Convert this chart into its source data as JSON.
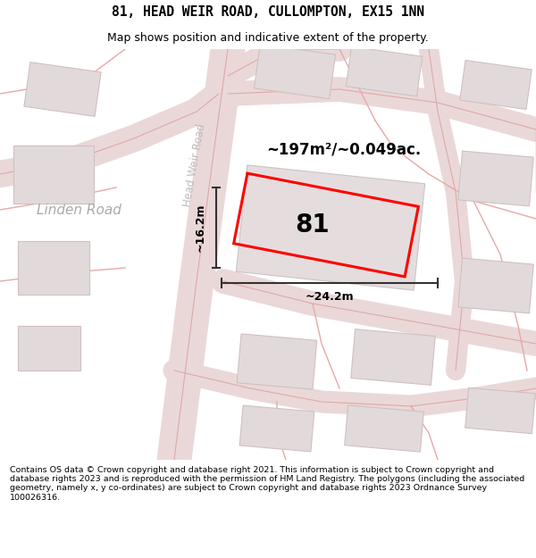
{
  "title_line1": "81, HEAD WEIR ROAD, CULLOMPTON, EX15 1NN",
  "title_line2": "Map shows position and indicative extent of the property.",
  "footer_text": "Contains OS data © Crown copyright and database right 2021. This information is subject to Crown copyright and database rights 2023 and is reproduced with the permission of HM Land Registry. The polygons (including the associated geometry, namely x, y co-ordinates) are subject to Crown copyright and database rights 2023 Ordnance Survey 100026316.",
  "property_number": "81",
  "area_label": "~197m²/~0.049ac.",
  "width_label": "~24.2m",
  "height_label": "~16.2m",
  "linden_road_label": "Linden Road",
  "head_weir_road_label": "Head Weir Road",
  "bg_color": "#f7f4f4",
  "road_fill": "#ead8d8",
  "road_edge": "#e0a8a8",
  "bld_fill": "#e2dada",
  "bld_edge": "#d0c0c0",
  "prop_color": "#ff0000",
  "title_bg": "#ffffff",
  "footer_bg": "#ffffff"
}
